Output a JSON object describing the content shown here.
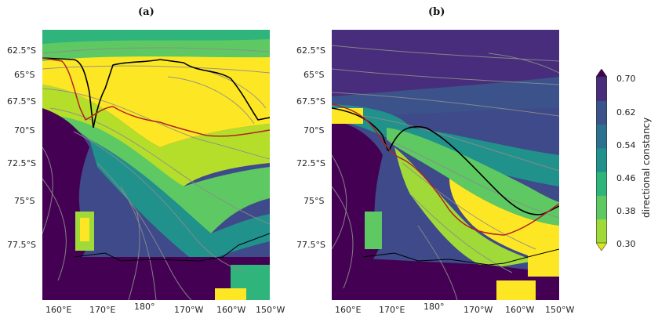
{
  "chart_data": [
    {
      "type": "heatmap",
      "panel_label": "(a)",
      "lat_ticks": [
        "62.5°S",
        "65°S",
        "67.5°S",
        "70°S",
        "72.5°S",
        "75°S",
        "77.5°S"
      ],
      "lon_ticks": [
        "160°E",
        "170°E",
        "180°",
        "170°W",
        "160°W",
        "150°W"
      ],
      "variable": "directional constancy",
      "overlays": [
        "wind streamlines",
        "black contour line",
        "red contour line"
      ],
      "grid": false
    },
    {
      "type": "heatmap",
      "panel_label": "(b)",
      "lat_ticks": [
        "62.5°S",
        "65°S",
        "67.5°S",
        "70°S",
        "72.5°S",
        "75°S",
        "77.5°S"
      ],
      "lon_ticks": [
        "160°E",
        "170°E",
        "180°",
        "170°W",
        "160°W",
        "150°W"
      ],
      "variable": "directional constancy",
      "overlays": [
        "wind streamlines",
        "black contour line",
        "red contour line"
      ],
      "grid": false
    }
  ],
  "colorbar": {
    "label": "directional constancy",
    "ticks": [
      "0.70",
      "0.62",
      "0.54",
      "0.46",
      "0.38",
      "0.30"
    ],
    "range": [
      0.3,
      0.7
    ],
    "extend": "both",
    "colors": [
      "#dfe318",
      "#a0da39",
      "#5ec962",
      "#2fb47c",
      "#21918c",
      "#2c728e",
      "#3b528b",
      "#472d7b",
      "#440154"
    ]
  },
  "colors": {
    "high": "#440154",
    "mid": "#21918c",
    "low": "#fde725",
    "streamline": "#8c8c8c",
    "contour_black": "#000000",
    "contour_red": "#b22222"
  }
}
